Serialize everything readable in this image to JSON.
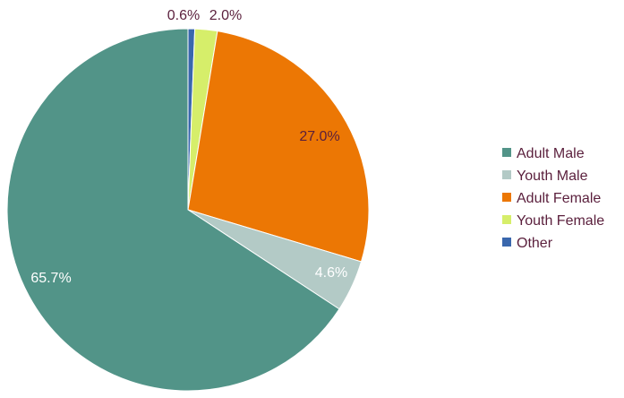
{
  "chart_data": {
    "type": "pie",
    "title": "",
    "legend_position": "right",
    "slices": [
      {
        "name": "Other",
        "value": 0.6,
        "label": "0.6%",
        "color": "#3a67ad",
        "label_color": "#5a1f3c"
      },
      {
        "name": "Youth Female",
        "value": 2.0,
        "label": "2.0%",
        "color": "#d6ee6a",
        "label_color": "#5a1f3c"
      },
      {
        "name": "Adult Female",
        "value": 27.0,
        "label": "27.0%",
        "color": "#ec7704",
        "label_color": "#5a1f3c"
      },
      {
        "name": "Youth Male",
        "value": 4.6,
        "label": "4.6%",
        "color": "#b3cac6",
        "label_color": "#ffffff"
      },
      {
        "name": "Adult Male",
        "value": 65.7,
        "label": "65.7%",
        "color": "#529488",
        "label_color": "#ffffff"
      }
    ],
    "legend": [
      {
        "name": "Adult Male",
        "color": "#529488"
      },
      {
        "name": "Youth Male",
        "color": "#b3cac6"
      },
      {
        "name": "Adult Female",
        "color": "#ec7704"
      },
      {
        "name": "Youth Female",
        "color": "#d6ee6a"
      },
      {
        "name": "Other",
        "color": "#3a67ad"
      }
    ]
  }
}
